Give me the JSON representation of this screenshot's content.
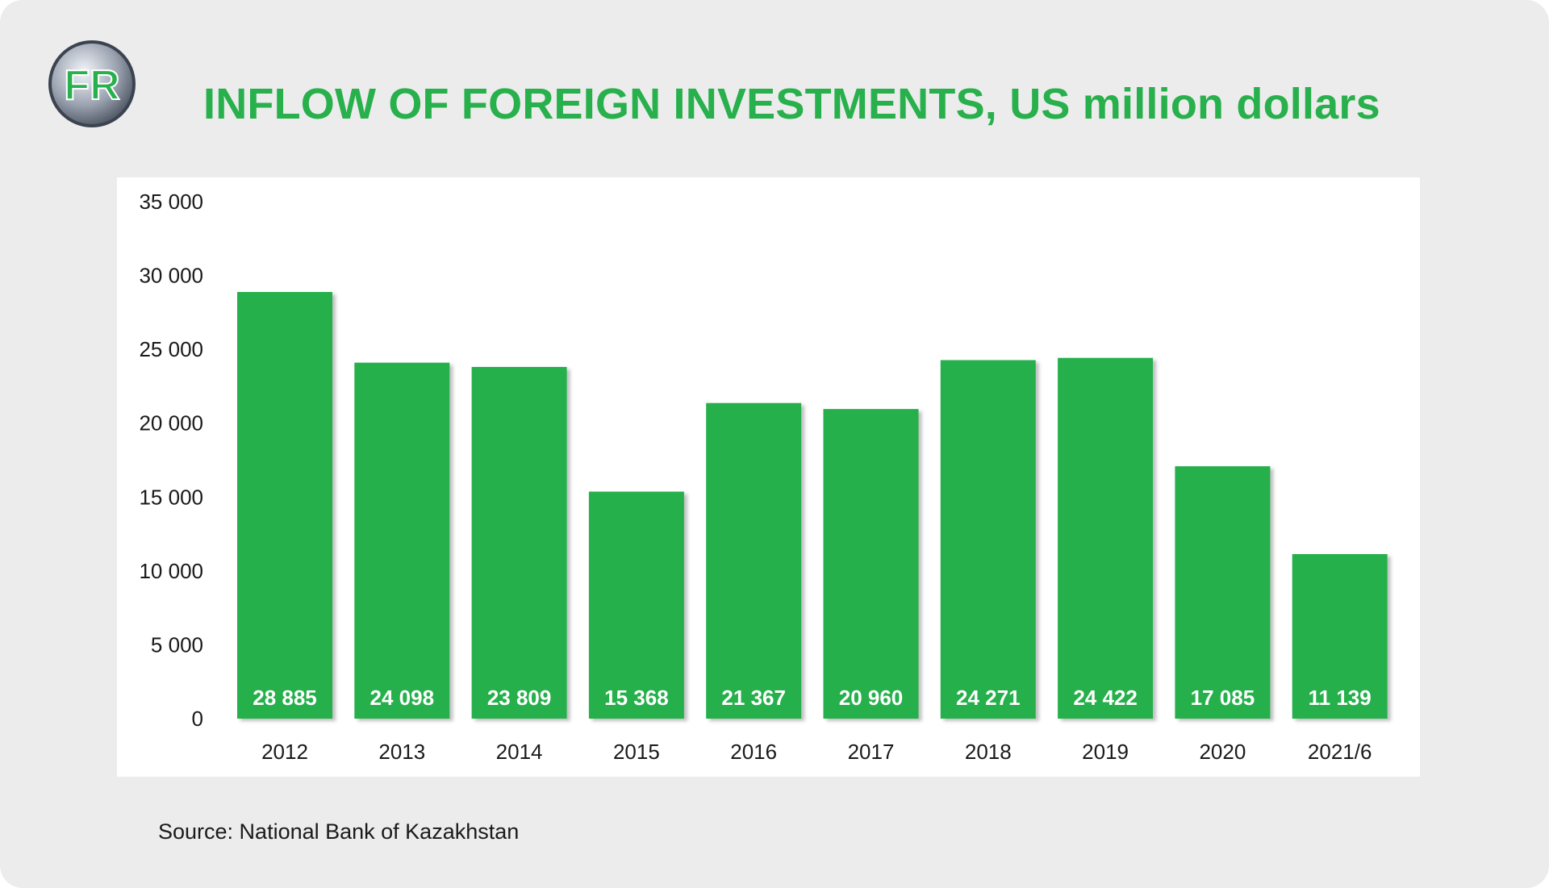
{
  "header": {
    "title": "INFLOW OF FOREIGN INVESTMENTS, US million dollars",
    "logo_text": "FR"
  },
  "footer": {
    "source": "Source: National Bank of Kazakhstan"
  },
  "colors": {
    "accent": "#27b04b",
    "bar": "#27b04b",
    "background": "#ececec",
    "plot_background": "#ffffff"
  },
  "chart_data": {
    "type": "bar",
    "title": "INFLOW OF FOREIGN INVESTMENTS, US million dollars",
    "xlabel": "",
    "ylabel": "",
    "categories": [
      "2012",
      "2013",
      "2014",
      "2015",
      "2016",
      "2017",
      "2018",
      "2019",
      "2020",
      "2021/6"
    ],
    "values": [
      28885,
      24098,
      23809,
      15368,
      21367,
      20960,
      24271,
      24422,
      17085,
      11139
    ],
    "data_labels": [
      "28 885",
      "24 098",
      "23 809",
      "15 368",
      "21 367",
      "20 960",
      "24 271",
      "24 422",
      "17 085",
      "11 139"
    ],
    "ylim": [
      0,
      35000
    ],
    "yticks": [
      0,
      5000,
      10000,
      15000,
      20000,
      25000,
      30000,
      35000
    ],
    "ytick_labels": [
      "0",
      "5 000",
      "10 000",
      "15 000",
      "20 000",
      "25 000",
      "30 000",
      "35 000"
    ],
    "grid": false,
    "legend": "none"
  }
}
